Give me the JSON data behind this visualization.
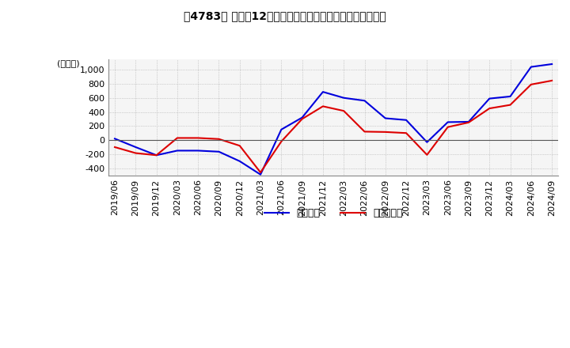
{
  "title": "［4783］ 利益の12か月移動合計の対前年同期増減額の推移",
  "ylabel": "(百万円)",
  "ylim": [
    -500,
    1150
  ],
  "yticks": [
    -400,
    -200,
    0,
    200,
    400,
    600,
    800,
    1000
  ],
  "legend_labels": [
    "経常利益",
    "当期純利益"
  ],
  "line_colors": [
    "#0000dd",
    "#dd0000"
  ],
  "x_labels": [
    "2019/06",
    "2019/09",
    "2019/12",
    "2020/03",
    "2020/06",
    "2020/09",
    "2020/12",
    "2021/03",
    "2021/06",
    "2021/09",
    "2021/12",
    "2022/03",
    "2022/06",
    "2022/09",
    "2022/12",
    "2023/03",
    "2023/06",
    "2023/09",
    "2023/12",
    "2024/03",
    "2024/06",
    "2024/09"
  ],
  "operating_profit": [
    20,
    -100,
    -215,
    -150,
    -150,
    -165,
    -300,
    -490,
    150,
    320,
    685,
    600,
    560,
    310,
    285,
    -30,
    255,
    260,
    590,
    620,
    1040,
    1080
  ],
  "net_profit": [
    -100,
    -185,
    -215,
    30,
    30,
    15,
    -80,
    -460,
    -20,
    300,
    480,
    415,
    120,
    115,
    100,
    -210,
    185,
    250,
    450,
    500,
    790,
    845
  ],
  "background_color": "#ffffff",
  "plot_bg_color": "#f5f5f5",
  "grid_color": "#aaaaaa"
}
